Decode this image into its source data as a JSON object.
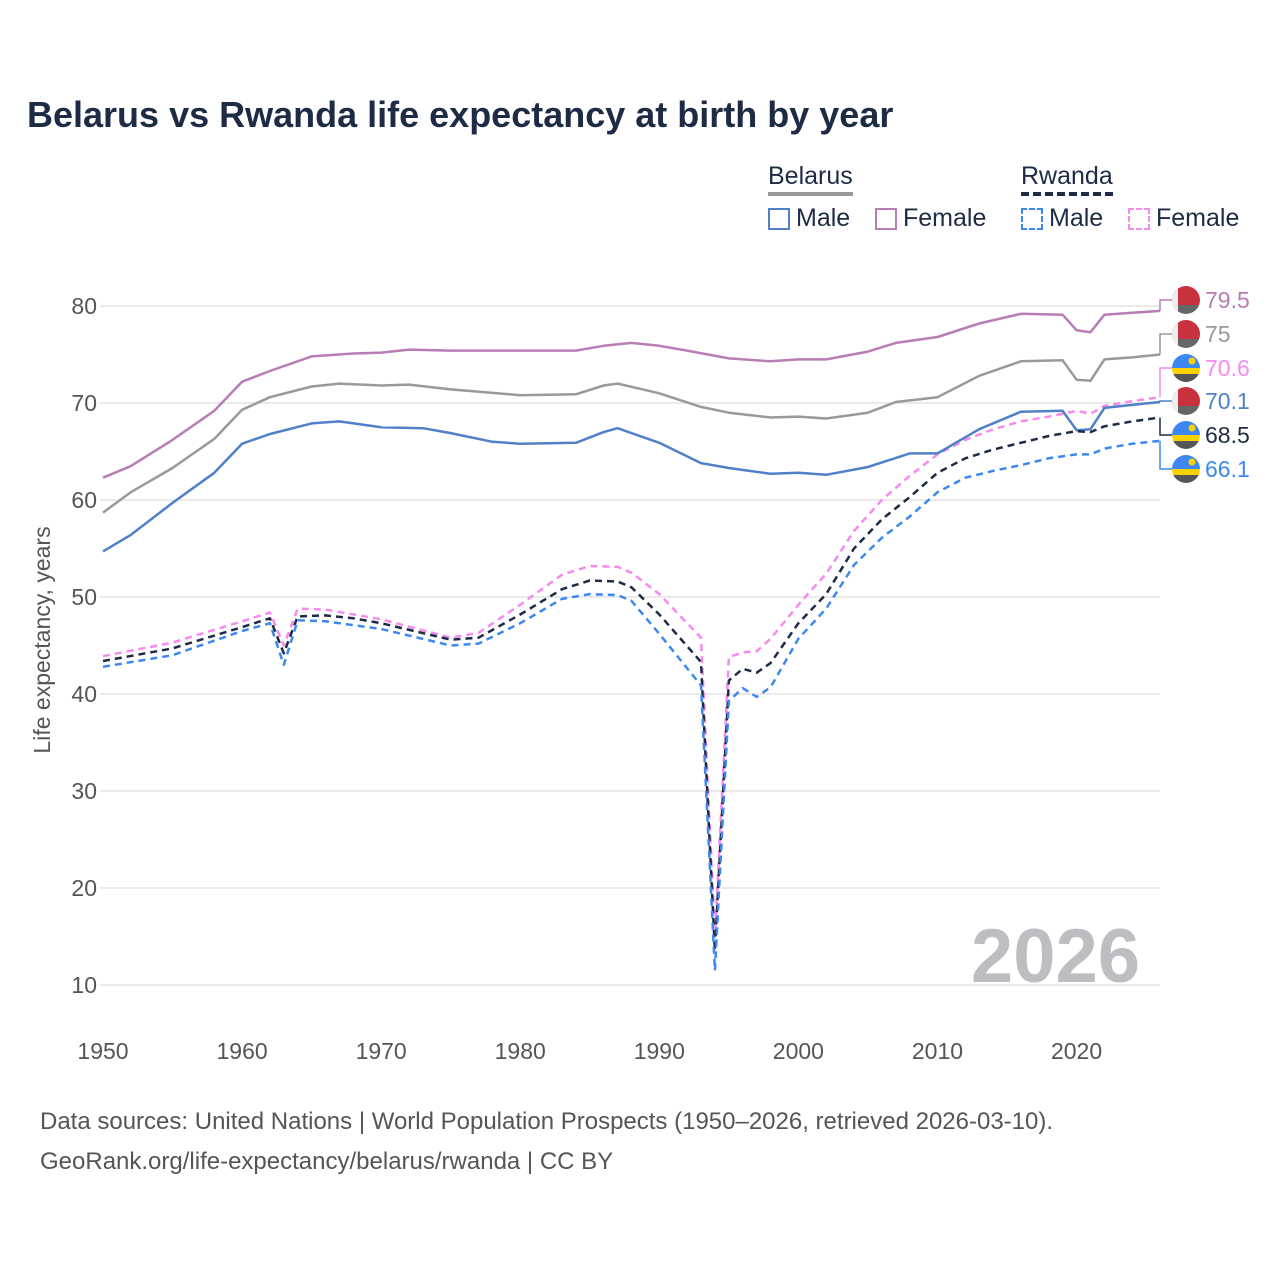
{
  "chart_data": {
    "type": "line",
    "title": "Belarus vs Rwanda life expectancy at birth by year",
    "xlabel": "",
    "ylabel": "Life expectancy, years",
    "xlim": [
      1950,
      2026
    ],
    "ylim": [
      10,
      80
    ],
    "x_ticks": [
      "1950",
      "1960",
      "1970",
      "1980",
      "1990",
      "2000",
      "2010",
      "2020"
    ],
    "y_ticks": [
      "10",
      "20",
      "30",
      "40",
      "50",
      "60",
      "70",
      "80"
    ],
    "grid": true,
    "year_watermark": "2026",
    "legend": {
      "groups": [
        {
          "label": "Belarus",
          "items": [
            "Male",
            "Female"
          ]
        },
        {
          "label": "Rwanda",
          "items": [
            "Male",
            "Female"
          ]
        }
      ],
      "placement": "top-right"
    },
    "series": [
      {
        "name": "Belarus Female",
        "color": "#b87db5",
        "dashed": false,
        "end_label": "79.5",
        "flag": "belarus",
        "points": [
          [
            1950,
            62.3
          ],
          [
            1952,
            63.5
          ],
          [
            1955,
            66.2
          ],
          [
            1958,
            69.2
          ],
          [
            1960,
            72.2
          ],
          [
            1962,
            73.3
          ],
          [
            1965,
            74.8
          ],
          [
            1968,
            75.1
          ],
          [
            1970,
            75.2
          ],
          [
            1972,
            75.5
          ],
          [
            1975,
            75.4
          ],
          [
            1980,
            75.4
          ],
          [
            1984,
            75.4
          ],
          [
            1986,
            75.9
          ],
          [
            1988,
            76.2
          ],
          [
            1990,
            75.9
          ],
          [
            1992,
            75.4
          ],
          [
            1995,
            74.6
          ],
          [
            1998,
            74.3
          ],
          [
            2000,
            74.5
          ],
          [
            2002,
            74.5
          ],
          [
            2005,
            75.3
          ],
          [
            2007,
            76.2
          ],
          [
            2010,
            76.8
          ],
          [
            2013,
            78.2
          ],
          [
            2016,
            79.2
          ],
          [
            2019,
            79.1
          ],
          [
            2020,
            77.5
          ],
          [
            2021,
            77.3
          ],
          [
            2022,
            79.1
          ],
          [
            2024,
            79.3
          ],
          [
            2026,
            79.5
          ]
        ]
      },
      {
        "name": "Belarus Total",
        "color": "#999999",
        "dashed": false,
        "end_label": "75",
        "flag": "belarus",
        "points": [
          [
            1950,
            58.7
          ],
          [
            1952,
            60.8
          ],
          [
            1955,
            63.3
          ],
          [
            1958,
            66.3
          ],
          [
            1960,
            69.3
          ],
          [
            1962,
            70.6
          ],
          [
            1965,
            71.7
          ],
          [
            1967,
            72.0
          ],
          [
            1970,
            71.8
          ],
          [
            1972,
            71.9
          ],
          [
            1975,
            71.4
          ],
          [
            1980,
            70.8
          ],
          [
            1984,
            70.9
          ],
          [
            1986,
            71.8
          ],
          [
            1987,
            72.0
          ],
          [
            1990,
            71.0
          ],
          [
            1993,
            69.6
          ],
          [
            1995,
            69.0
          ],
          [
            1998,
            68.5
          ],
          [
            2000,
            68.6
          ],
          [
            2002,
            68.4
          ],
          [
            2005,
            69.0
          ],
          [
            2007,
            70.1
          ],
          [
            2010,
            70.6
          ],
          [
            2013,
            72.8
          ],
          [
            2016,
            74.3
          ],
          [
            2019,
            74.4
          ],
          [
            2020,
            72.4
          ],
          [
            2021,
            72.3
          ],
          [
            2022,
            74.5
          ],
          [
            2024,
            74.7
          ],
          [
            2026,
            75.0
          ]
        ]
      },
      {
        "name": "Rwanda Female",
        "color": "#f58af0",
        "dashed": true,
        "end_label": "70.6",
        "flag": "rwanda",
        "points": [
          [
            1950,
            43.9
          ],
          [
            1955,
            45.3
          ],
          [
            1960,
            47.5
          ],
          [
            1962,
            48.4
          ],
          [
            1963,
            45.0
          ],
          [
            1964,
            48.8
          ],
          [
            1966,
            48.7
          ],
          [
            1970,
            47.7
          ],
          [
            1975,
            45.8
          ],
          [
            1977,
            46.3
          ],
          [
            1980,
            49.2
          ],
          [
            1983,
            52.3
          ],
          [
            1985,
            53.2
          ],
          [
            1987,
            53.1
          ],
          [
            1988,
            52.5
          ],
          [
            1990,
            50.3
          ],
          [
            1993,
            45.8
          ],
          [
            1994,
            15.0
          ],
          [
            1995,
            43.8
          ],
          [
            1996,
            44.3
          ],
          [
            1997,
            44.4
          ],
          [
            1998,
            45.7
          ],
          [
            2000,
            49.2
          ],
          [
            2002,
            52.4
          ],
          [
            2004,
            56.8
          ],
          [
            2006,
            60.0
          ],
          [
            2008,
            62.5
          ],
          [
            2010,
            64.7
          ],
          [
            2012,
            66.2
          ],
          [
            2014,
            67.3
          ],
          [
            2016,
            68.1
          ],
          [
            2018,
            68.6
          ],
          [
            2020,
            69.2
          ],
          [
            2021,
            68.9
          ],
          [
            2022,
            69.7
          ],
          [
            2024,
            70.2
          ],
          [
            2026,
            70.6
          ]
        ]
      },
      {
        "name": "Belarus Male",
        "color": "#5080c8",
        "dashed": false,
        "end_label": "70.1",
        "flag": "belarus",
        "points": [
          [
            1950,
            54.7
          ],
          [
            1952,
            56.4
          ],
          [
            1955,
            59.7
          ],
          [
            1958,
            62.8
          ],
          [
            1960,
            65.8
          ],
          [
            1962,
            66.8
          ],
          [
            1965,
            67.9
          ],
          [
            1967,
            68.1
          ],
          [
            1970,
            67.5
          ],
          [
            1973,
            67.4
          ],
          [
            1975,
            66.9
          ],
          [
            1978,
            66.0
          ],
          [
            1980,
            65.8
          ],
          [
            1984,
            65.9
          ],
          [
            1986,
            67.0
          ],
          [
            1987,
            67.4
          ],
          [
            1990,
            65.9
          ],
          [
            1993,
            63.8
          ],
          [
            1995,
            63.3
          ],
          [
            1998,
            62.7
          ],
          [
            2000,
            62.8
          ],
          [
            2002,
            62.6
          ],
          [
            2005,
            63.4
          ],
          [
            2008,
            64.8
          ],
          [
            2010,
            64.8
          ],
          [
            2013,
            67.3
          ],
          [
            2016,
            69.1
          ],
          [
            2019,
            69.2
          ],
          [
            2020,
            67.2
          ],
          [
            2021,
            67.3
          ],
          [
            2022,
            69.5
          ],
          [
            2024,
            69.8
          ],
          [
            2026,
            70.1
          ]
        ]
      },
      {
        "name": "Rwanda Total",
        "color": "#1e2b45",
        "dashed": true,
        "end_label": "68.5",
        "flag": "rwanda",
        "points": [
          [
            1950,
            43.4
          ],
          [
            1955,
            44.7
          ],
          [
            1960,
            46.9
          ],
          [
            1962,
            47.8
          ],
          [
            1963,
            44.2
          ],
          [
            1964,
            48.0
          ],
          [
            1966,
            48.1
          ],
          [
            1968,
            47.8
          ],
          [
            1970,
            47.3
          ],
          [
            1975,
            45.6
          ],
          [
            1977,
            45.8
          ],
          [
            1980,
            48.2
          ],
          [
            1983,
            50.8
          ],
          [
            1985,
            51.7
          ],
          [
            1987,
            51.6
          ],
          [
            1988,
            51.0
          ],
          [
            1990,
            48.2
          ],
          [
            1993,
            43.3
          ],
          [
            1994,
            13.5
          ],
          [
            1995,
            41.4
          ],
          [
            1996,
            42.6
          ],
          [
            1997,
            42.2
          ],
          [
            1998,
            43.2
          ],
          [
            2000,
            47.3
          ],
          [
            2002,
            50.3
          ],
          [
            2004,
            55.0
          ],
          [
            2006,
            58.0
          ],
          [
            2008,
            60.3
          ],
          [
            2010,
            62.8
          ],
          [
            2012,
            64.3
          ],
          [
            2014,
            65.2
          ],
          [
            2016,
            65.9
          ],
          [
            2018,
            66.6
          ],
          [
            2020,
            67.1
          ],
          [
            2021,
            67.0
          ],
          [
            2022,
            67.6
          ],
          [
            2024,
            68.1
          ],
          [
            2026,
            68.5
          ]
        ]
      },
      {
        "name": "Rwanda Male",
        "color": "#3d88f0",
        "dashed": true,
        "end_label": "66.1",
        "flag": "rwanda",
        "points": [
          [
            1950,
            42.8
          ],
          [
            1955,
            44.0
          ],
          [
            1960,
            46.5
          ],
          [
            1962,
            47.3
          ],
          [
            1963,
            43.0
          ],
          [
            1964,
            47.6
          ],
          [
            1966,
            47.5
          ],
          [
            1970,
            46.7
          ],
          [
            1975,
            45.0
          ],
          [
            1977,
            45.2
          ],
          [
            1980,
            47.3
          ],
          [
            1983,
            49.8
          ],
          [
            1985,
            50.3
          ],
          [
            1987,
            50.2
          ],
          [
            1988,
            49.6
          ],
          [
            1990,
            46.2
          ],
          [
            1993,
            40.9
          ],
          [
            1994,
            11.5
          ],
          [
            1995,
            39.3
          ],
          [
            1996,
            40.6
          ],
          [
            1997,
            39.7
          ],
          [
            1998,
            40.7
          ],
          [
            2000,
            45.7
          ],
          [
            2002,
            48.8
          ],
          [
            2004,
            53.3
          ],
          [
            2006,
            56.1
          ],
          [
            2008,
            58.3
          ],
          [
            2010,
            60.8
          ],
          [
            2012,
            62.3
          ],
          [
            2014,
            63.0
          ],
          [
            2016,
            63.6
          ],
          [
            2018,
            64.3
          ],
          [
            2020,
            64.7
          ],
          [
            2021,
            64.7
          ],
          [
            2022,
            65.3
          ],
          [
            2024,
            65.8
          ],
          [
            2026,
            66.1
          ]
        ]
      }
    ]
  },
  "source": {
    "line1": "Data sources: United Nations | World Population Prospects (1950–2026, retrieved 2026-03-10).",
    "line2": "GeoRank.org/life-expectancy/belarus/rwanda | CC BY"
  }
}
